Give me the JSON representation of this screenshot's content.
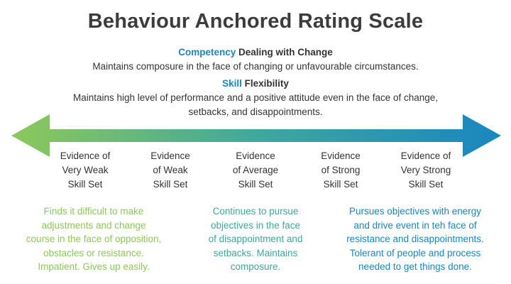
{
  "title": "Behaviour Anchored Rating Scale",
  "competency": {
    "label": "Competency",
    "name": "Dealing with Change",
    "description": "Maintains composure in the face of changing or unfavourable circumstances."
  },
  "skill": {
    "label": "Skill",
    "name": "Flexibility",
    "description_lines": [
      "Maintains high level of performance and a positive attitude even in the face of change,",
      "setbacks, and disappointments."
    ]
  },
  "colors": {
    "left": "#8dc85a",
    "middle": "#3fa89e",
    "right": "#1a86c0",
    "title": "#3c3c3c"
  },
  "levels": [
    {
      "lines": [
        "Evidence of",
        "Very Weak",
        "Skill Set"
      ]
    },
    {
      "lines": [
        "Evidence",
        "of Weak",
        "Skill Set"
      ]
    },
    {
      "lines": [
        "Evidence",
        "of Average",
        "Skill Set"
      ]
    },
    {
      "lines": [
        "Evidence",
        "of Strong",
        "Skill Set"
      ]
    },
    {
      "lines": [
        "Evidence of",
        "Very Strong",
        "Skill Set"
      ]
    }
  ],
  "descriptions": {
    "low": {
      "lines": [
        "Finds it difficult to make",
        "adjustments and change",
        "course in the face of opposition,",
        "obstacles or resistance.",
        "Impatient. Gives up easily."
      ]
    },
    "mid": {
      "lines": [
        "Continues to pursue",
        "objectives in the face",
        "of disappointment and",
        "setbacks. Maintains",
        "composure."
      ]
    },
    "high": {
      "lines": [
        "Pursues objectives with energy",
        "and drive event in teh face of",
        "resistance and disappointments.",
        "Tolerant of people and process",
        "needed to get things done."
      ]
    }
  }
}
